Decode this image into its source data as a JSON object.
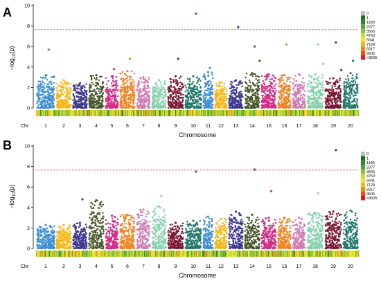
{
  "chart_data": [
    {
      "type": "scatter",
      "panel_label": "A",
      "xlabel": "Chromosome",
      "ylabel_main": "−log",
      "ylabel_sub": "10",
      "ylabel_tail": "(p)",
      "chr_label": "Chr",
      "ylim": [
        0,
        10
      ],
      "yticks": [
        0,
        2,
        4,
        6,
        8,
        10
      ],
      "threshold": 7.65,
      "categories": [
        "1",
        "2",
        "3",
        "4",
        "5",
        "6",
        "7",
        "8",
        "9",
        "10",
        "11",
        "12",
        "13",
        "14",
        "15",
        "16",
        "17",
        "18",
        "19",
        "20"
      ],
      "series": [
        {
          "values": [
            3.2,
            5.7
          ]
        },
        {
          "values": [
            2.7
          ]
        },
        {
          "values": [
            2.4
          ]
        },
        {
          "values": [
            3.2
          ]
        },
        {
          "values": [
            3.1,
            3.8
          ]
        },
        {
          "values": [
            3.6,
            4.8
          ]
        },
        {
          "values": [
            3.0
          ]
        },
        {
          "values": [
            2.7
          ]
        },
        {
          "values": [
            3.1,
            4.8
          ]
        },
        {
          "values": [
            3.1,
            9.2
          ]
        },
        {
          "values": [
            3.5,
            3.9
          ]
        },
        {
          "values": [
            2.5
          ]
        },
        {
          "values": [
            2.7,
            7.9
          ]
        },
        {
          "values": [
            3.4,
            6.0,
            4.6
          ]
        },
        {
          "values": [
            3.3
          ]
        },
        {
          "values": [
            3.2,
            6.2
          ]
        },
        {
          "values": [
            3.3
          ]
        },
        {
          "values": [
            3.3,
            6.2,
            4.3
          ]
        },
        {
          "values": [
            2.9,
            6.4,
            3.7
          ]
        },
        {
          "values": [
            3.4,
            4.6
          ]
        }
      ]
    },
    {
      "type": "scatter",
      "panel_label": "B",
      "xlabel": "Chromosome",
      "ylabel_main": "−log",
      "ylabel_sub": "10",
      "ylabel_tail": "(p)",
      "chr_label": "Chr",
      "ylim": [
        0,
        10
      ],
      "yticks": [
        0,
        2,
        4,
        6,
        8,
        10
      ],
      "threshold": 7.65,
      "categories": [
        "1",
        "2",
        "3",
        "4",
        "5",
        "6",
        "7",
        "8",
        "9",
        "10",
        "11",
        "12",
        "13",
        "14",
        "15",
        "16",
        "17",
        "18",
        "19",
        "20"
      ],
      "series": [
        {
          "values": [
            2.3
          ]
        },
        {
          "values": [
            2.3
          ]
        },
        {
          "values": [
            2.5,
            4.8
          ]
        },
        {
          "values": [
            4.7
          ]
        },
        {
          "values": [
            3.2
          ]
        },
        {
          "values": [
            3.3
          ]
        },
        {
          "values": [
            3.8
          ]
        },
        {
          "values": [
            4.1,
            5.1
          ]
        },
        {
          "values": [
            2.5
          ]
        },
        {
          "values": [
            2.7,
            7.5
          ]
        },
        {
          "values": [
            3.1
          ]
        },
        {
          "values": [
            2.9
          ]
        },
        {
          "values": [
            3.6
          ]
        },
        {
          "values": [
            3.3,
            7.7
          ]
        },
        {
          "values": [
            3.0,
            5.6
          ]
        },
        {
          "values": [
            3.0
          ]
        },
        {
          "values": [
            3.0
          ]
        },
        {
          "values": [
            3.5,
            5.4
          ]
        },
        {
          "values": [
            3.6,
            9.6
          ]
        },
        {
          "values": [
            3.7
          ]
        }
      ]
    }
  ],
  "chr_colors": [
    "#3e8fd3",
    "#f5b81a",
    "#3e3890",
    "#4a5a2c",
    "#d62a86",
    "#f08222",
    "#cf7fb4",
    "#86d2ac",
    "#7c1a35",
    "#23796a",
    "#3e8fd3",
    "#f5b81a",
    "#3e3890",
    "#4a5a2c",
    "#d62a86",
    "#f08222",
    "#cf7fb4",
    "#86d2ac",
    "#7c1a35",
    "#23796a"
  ],
  "threshold_color": "#e8463c",
  "density_legend": {
    "labels": [
      "0",
      "1",
      "1189",
      "2377",
      "3565",
      "4753",
      "5941",
      "7129",
      "8317",
      "9505",
      ">9505"
    ],
    "colors": [
      "#c0c0c0",
      "#1b6e1e",
      "#2e8b2a",
      "#55a534",
      "#8cc53c",
      "#c9dc3a",
      "#f1e22c",
      "#f5b920",
      "#f28a1a",
      "#ee4f18",
      "#e31b14"
    ]
  }
}
